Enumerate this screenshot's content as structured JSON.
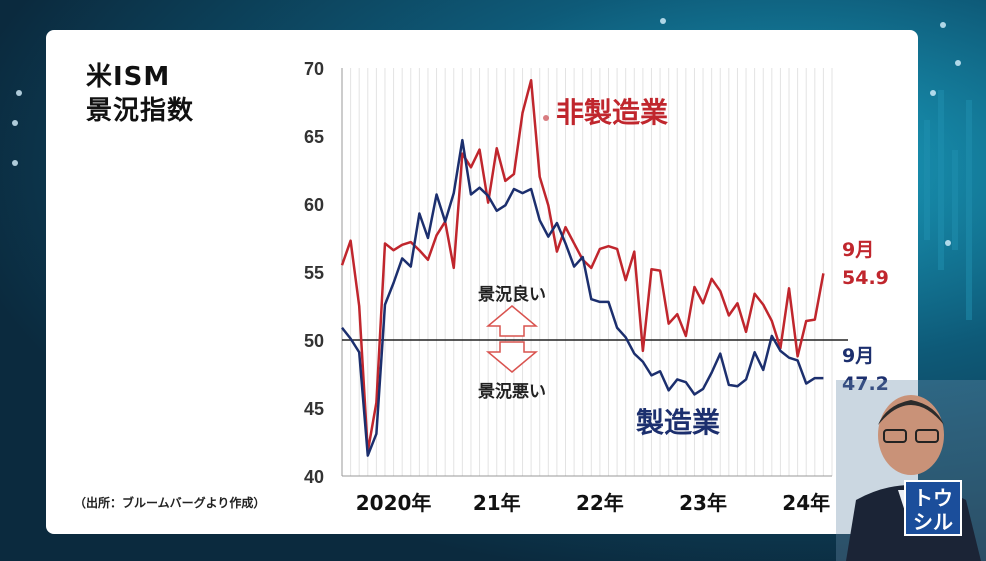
{
  "title_line1": "米ISM",
  "title_line2": "景況指数",
  "source": "（出所：ブルームバーグより作成）",
  "annotation_good": "景況良い",
  "annotation_bad": "景況悪い",
  "logo_line1": "トウ",
  "logo_line2": "シル",
  "colors": {
    "non_manufacturing": "#c0262d",
    "manufacturing": "#1c2f6e",
    "arrow": "#d9534f"
  },
  "chart_data": {
    "type": "line",
    "title": "米ISM 景況指数",
    "ylim": [
      40,
      70
    ],
    "yticks": [
      40,
      45,
      50,
      55,
      60,
      65,
      70
    ],
    "xlim": [
      2020.0,
      2024.75
    ],
    "xtick_labels": [
      {
        "x": 2020.0,
        "label": "2020年"
      },
      {
        "x": 2021.0,
        "label": "21年"
      },
      {
        "x": 2022.0,
        "label": "22年"
      },
      {
        "x": 2023.0,
        "label": "23年"
      },
      {
        "x": 2024.0,
        "label": "24年"
      }
    ],
    "reference_line": 50,
    "series": [
      {
        "name": "非製造業",
        "end_label_month": "9月",
        "end_label_value": "54.9",
        "values": [
          55.5,
          57.3,
          52.5,
          41.8,
          45.4,
          57.1,
          56.6,
          57.0,
          57.2,
          56.6,
          55.9,
          57.7,
          58.7,
          55.3,
          63.7,
          62.7,
          64.0,
          60.1,
          64.1,
          61.7,
          62.2,
          66.7,
          69.1,
          62.0,
          59.9,
          56.5,
          58.3,
          57.1,
          55.9,
          55.3,
          56.7,
          56.9,
          56.7,
          54.4,
          56.5,
          49.2,
          55.2,
          55.1,
          51.2,
          51.9,
          50.3,
          53.9,
          52.7,
          54.5,
          53.6,
          51.8,
          52.7,
          50.6,
          53.4,
          52.6,
          51.4,
          49.4,
          53.8,
          48.8,
          51.4,
          51.5,
          54.9
        ],
        "x_start": 2020.0
      },
      {
        "name": "製造業",
        "end_label_month": "9月",
        "end_label_value": "47.2",
        "values": [
          50.9,
          50.1,
          49.1,
          41.5,
          43.1,
          52.6,
          54.2,
          56.0,
          55.4,
          59.3,
          57.5,
          60.7,
          58.7,
          60.8,
          64.7,
          60.7,
          61.2,
          60.6,
          59.5,
          59.9,
          61.1,
          60.8,
          61.1,
          58.8,
          57.6,
          58.6,
          57.1,
          55.4,
          56.1,
          53.0,
          52.8,
          52.8,
          50.9,
          50.2,
          49.0,
          48.4,
          47.4,
          47.7,
          46.3,
          47.1,
          46.9,
          46.0,
          46.4,
          47.6,
          49.0,
          46.7,
          46.6,
          47.1,
          49.1,
          47.8,
          50.3,
          49.2,
          48.7,
          48.5,
          46.8,
          47.2,
          47.2
        ],
        "x_start": 2020.0
      }
    ]
  }
}
